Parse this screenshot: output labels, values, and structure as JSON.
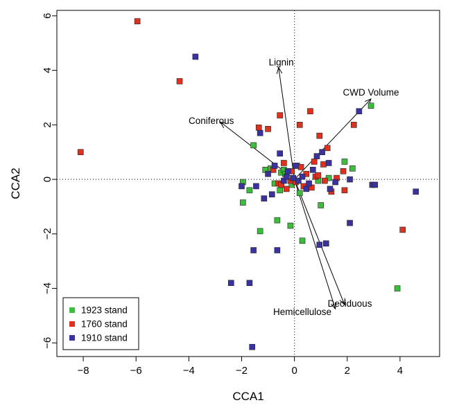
{
  "chart_data": {
    "type": "scatter",
    "title": "",
    "xlabel": "CCA1",
    "ylabel": "CCA2",
    "xlim": [
      -9,
      5.5
    ],
    "ylim": [
      -6.5,
      6.2
    ],
    "x_ticks": [
      -8,
      -6,
      -4,
      -2,
      0,
      2,
      4
    ],
    "y_ticks": [
      -6,
      -4,
      -2,
      0,
      2,
      4,
      6
    ],
    "x_tick_labels": [
      "−8",
      "−6",
      "−4",
      "−2",
      "0",
      "2",
      "4"
    ],
    "y_tick_labels": [
      "−6",
      "−4",
      "−2",
      "0",
      "2",
      "4",
      "6"
    ],
    "zero_lines": true,
    "grid": false,
    "legend_position": "bottom-left",
    "series": [
      {
        "name": "1923 stand",
        "color": "#3cbe3c",
        "points": [
          [
            -1.95,
            -0.1
          ],
          [
            -1.95,
            -0.85
          ],
          [
            -1.7,
            -0.4
          ],
          [
            -1.55,
            1.25
          ],
          [
            -1.3,
            -1.9
          ],
          [
            -1.1,
            0.35
          ],
          [
            -0.9,
            0.4
          ],
          [
            -0.75,
            -0.15
          ],
          [
            -0.65,
            -1.5
          ],
          [
            -0.55,
            -0.4
          ],
          [
            -0.5,
            0.25
          ],
          [
            -0.4,
            0.35
          ],
          [
            -0.35,
            0.2
          ],
          [
            -0.15,
            -1.7
          ],
          [
            -0.1,
            -0.2
          ],
          [
            0.1,
            0.5
          ],
          [
            0.3,
            -2.25
          ],
          [
            0.2,
            -0.5
          ],
          [
            0.9,
            -0.05
          ],
          [
            1.0,
            -0.95
          ],
          [
            1.3,
            0.05
          ],
          [
            1.9,
            0.65
          ],
          [
            2.2,
            0.4
          ],
          [
            2.9,
            2.7
          ],
          [
            3.9,
            -4.0
          ]
        ]
      },
      {
        "name": "1760 stand",
        "color": "#e0301e",
        "points": [
          [
            -8.1,
            1.0
          ],
          [
            -5.95,
            5.8
          ],
          [
            -4.35,
            3.6
          ],
          [
            -1.35,
            1.9
          ],
          [
            -1.0,
            1.85
          ],
          [
            -0.8,
            0.35
          ],
          [
            -0.6,
            -0.15
          ],
          [
            -0.5,
            -0.2
          ],
          [
            -0.4,
            0.6
          ],
          [
            -0.3,
            -0.35
          ],
          [
            -0.15,
            -0.05
          ],
          [
            -0.1,
            0.3
          ],
          [
            0.05,
            -0.1
          ],
          [
            0.2,
            2.0
          ],
          [
            0.25,
            0.45
          ],
          [
            0.35,
            -0.25
          ],
          [
            0.45,
            0.2
          ],
          [
            0.6,
            2.5
          ],
          [
            0.65,
            -0.3
          ],
          [
            0.75,
            0.65
          ],
          [
            0.8,
            0.1
          ],
          [
            0.9,
            0.15
          ],
          [
            0.95,
            1.6
          ],
          [
            1.1,
            0.55
          ],
          [
            1.15,
            -0.05
          ],
          [
            1.25,
            1.15
          ],
          [
            1.4,
            -0.45
          ],
          [
            1.6,
            0.05
          ],
          [
            1.85,
            0.3
          ],
          [
            1.9,
            -0.4
          ],
          [
            2.25,
            2.0
          ],
          [
            -0.55,
            2.35
          ],
          [
            4.1,
            -1.85
          ]
        ]
      },
      {
        "name": "1910 stand",
        "color": "#3a329e",
        "points": [
          [
            -3.75,
            4.5
          ],
          [
            -2.4,
            -3.8
          ],
          [
            -2.0,
            -0.25
          ],
          [
            -1.7,
            -3.8
          ],
          [
            -1.6,
            -6.15
          ],
          [
            -1.55,
            -2.6
          ],
          [
            -1.45,
            -0.25
          ],
          [
            -1.3,
            1.7
          ],
          [
            -1.15,
            -0.7
          ],
          [
            -1.0,
            0.2
          ],
          [
            -0.85,
            -0.55
          ],
          [
            -0.75,
            0.5
          ],
          [
            -0.65,
            -2.6
          ],
          [
            -0.55,
            0.95
          ],
          [
            -0.4,
            -0.05
          ],
          [
            -0.3,
            0.1
          ],
          [
            -0.25,
            0.3
          ],
          [
            -0.05,
            0.05
          ],
          [
            0.05,
            0.5
          ],
          [
            0.15,
            -0.05
          ],
          [
            0.3,
            0.1
          ],
          [
            0.45,
            -0.35
          ],
          [
            0.55,
            -0.15
          ],
          [
            0.7,
            0.35
          ],
          [
            0.85,
            0.85
          ],
          [
            0.95,
            -2.4
          ],
          [
            1.05,
            1.0
          ],
          [
            1.2,
            -2.35
          ],
          [
            1.35,
            -0.35
          ],
          [
            1.55,
            -0.1
          ],
          [
            2.1,
            -1.6
          ],
          [
            2.45,
            2.5
          ],
          [
            2.1,
            0.0
          ],
          [
            2.95,
            -0.2
          ],
          [
            3.05,
            -0.2
          ],
          [
            4.6,
            -0.45
          ],
          [
            1.3,
            0.6
          ]
        ]
      }
    ],
    "vectors": [
      {
        "name": "Lignin",
        "x": -0.6,
        "y": 4.1,
        "label_x": -0.5,
        "label_y": 4.3
      },
      {
        "name": "CWD Volume",
        "x": 2.9,
        "y": 2.95,
        "label_x": 2.9,
        "label_y": 3.2
      },
      {
        "name": "Coniferous",
        "x": -2.8,
        "y": 2.1,
        "label_x": -3.15,
        "label_y": 2.15
      },
      {
        "name": "Hemicellulose",
        "x": 1.55,
        "y": -4.75,
        "label_x": 0.3,
        "label_y": -4.85
      },
      {
        "name": "Deciduous",
        "x": 1.9,
        "y": -4.6,
        "label_x": 2.1,
        "label_y": -4.55
      }
    ]
  }
}
